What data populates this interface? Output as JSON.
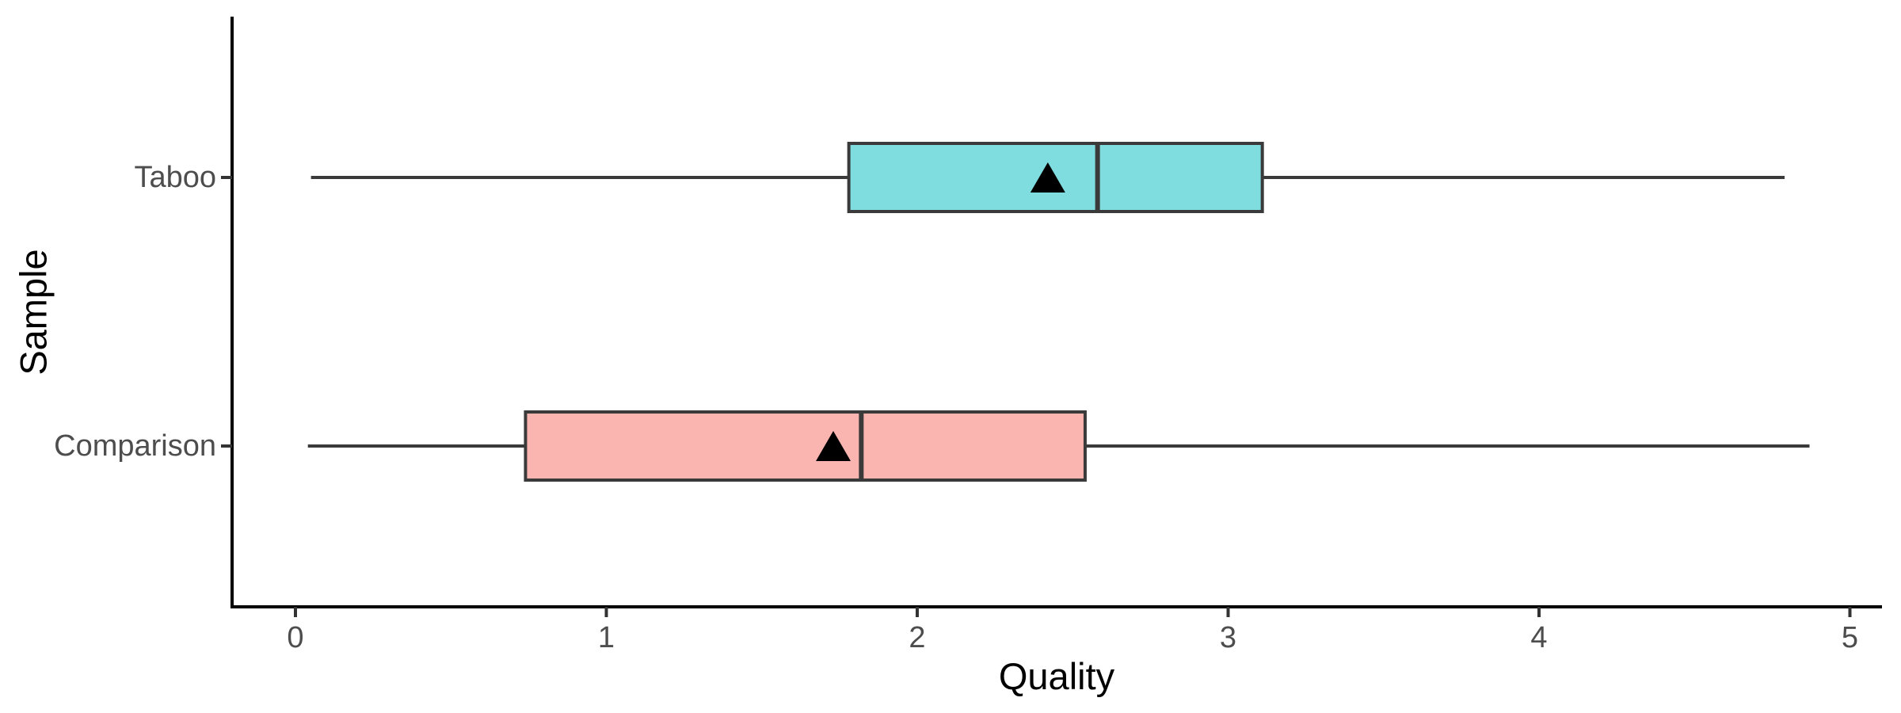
{
  "chart_data": {
    "type": "boxplot",
    "orientation": "horizontal",
    "xlabel": "Quality",
    "ylabel": "Sample",
    "xlim": [
      0,
      5
    ],
    "x_ticks": [
      "0",
      "1",
      "2",
      "3",
      "4",
      "5"
    ],
    "x_tick_values": [
      0,
      1,
      2,
      3,
      4,
      5
    ],
    "categories": [
      "Taboo",
      "Comparison"
    ],
    "series": [
      {
        "name": "Taboo",
        "min": 0.05,
        "q1": 1.78,
        "median": 2.58,
        "q3": 3.11,
        "max": 4.79,
        "mean": 2.42,
        "fill": "#7FDCDF"
      },
      {
        "name": "Comparison",
        "min": 0.04,
        "q1": 0.74,
        "median": 1.82,
        "q3": 2.54,
        "max": 4.87,
        "mean": 1.73,
        "fill": "#FBB5B1"
      }
    ],
    "mean_marker": "filled-triangle-up",
    "mean_marker_color": "#000000",
    "box_border_color": "#3a3a3a",
    "median_color": "#3a3a3a",
    "whisker_color": "#3a3a3a",
    "axis_line_color": "#000000",
    "tick_color": "#333333",
    "axis_text_color": "#4d4d4d",
    "grid": "off",
    "legend": "none",
    "background": "#ffffff"
  }
}
